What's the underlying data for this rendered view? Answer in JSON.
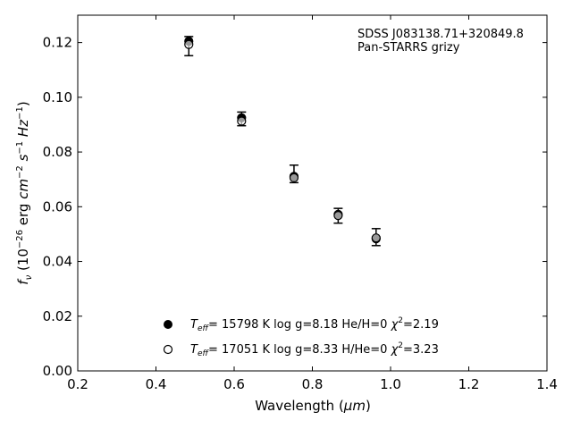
{
  "chart_data": {
    "type": "scatter",
    "xlabel_main": "Wavelength (",
    "xlabel_unit": "μm",
    "xlabel_close": ")",
    "xlim": [
      0.2,
      1.4
    ],
    "ylim": [
      0.0,
      0.13
    ],
    "xticks": [
      "0.2",
      "0.4",
      "0.6",
      "0.8",
      "1.0",
      "1.2",
      "1.4"
    ],
    "yticks": [
      "0.00",
      "0.02",
      "0.04",
      "0.06",
      "0.08",
      "0.10",
      "0.12"
    ],
    "annotation": [
      "SDSS J083138.71+320849.8",
      "Pan-STARRS grizy"
    ],
    "observed": {
      "x": [
        0.484,
        0.619,
        0.753,
        0.866,
        0.963
      ],
      "y": [
        0.1187,
        0.0921,
        0.072,
        0.0567,
        0.0489
      ],
      "yerr": [
        0.0035,
        0.0025,
        0.0032,
        0.0027,
        0.0031
      ]
    },
    "series": [
      {
        "name": "Teff= 15798 K  log g=8.18  He/H=0  χ2=2.19",
        "marker": "filled",
        "x": [
          0.484,
          0.619,
          0.753,
          0.866,
          0.963
        ],
        "y": [
          0.1205,
          0.0925,
          0.0711,
          0.0572,
          0.0483
        ]
      },
      {
        "name": "Teff= 17051 K  log g=8.33  H/He=0  χ2=3.23",
        "marker": "open",
        "x": [
          0.484,
          0.619,
          0.753,
          0.866,
          0.963
        ],
        "y": [
          0.1193,
          0.0913,
          0.0706,
          0.0568,
          0.0486
        ]
      }
    ],
    "legend": [
      {
        "teff": "= 15798 K  log g=8.18  He/H=0  ",
        "chi": "=2.19"
      },
      {
        "teff": "= 17051 K  log g=8.33  H/He=0  ",
        "chi": "=3.23"
      }
    ],
    "grid": false,
    "legend_position": "bottom-center"
  }
}
